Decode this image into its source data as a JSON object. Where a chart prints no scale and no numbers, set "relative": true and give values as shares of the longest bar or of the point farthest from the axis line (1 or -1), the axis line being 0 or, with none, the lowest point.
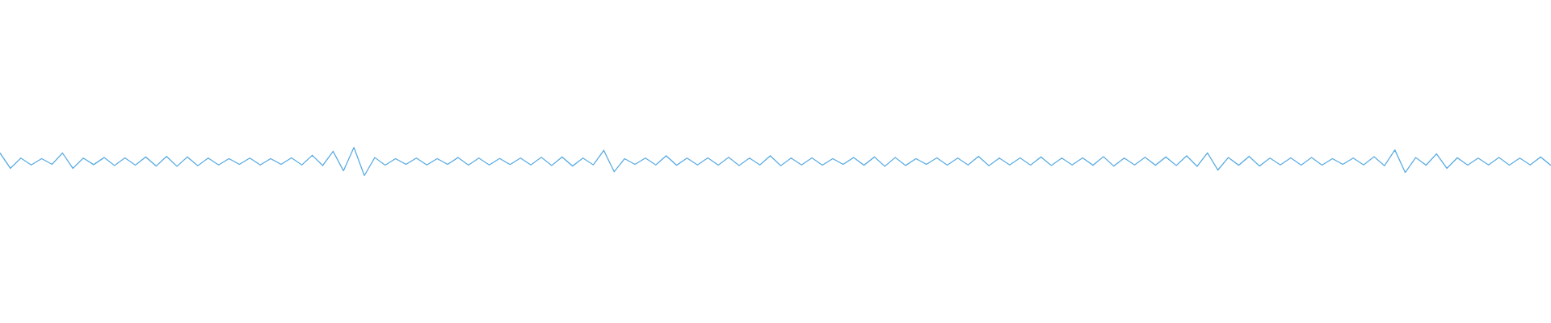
{
  "chart_data": {
    "type": "line",
    "relative": true,
    "categories": [
      null,
      null,
      null,
      null,
      null,
      null,
      null,
      null,
      null,
      null,
      null,
      null,
      null,
      null,
      null,
      null,
      null,
      null,
      null,
      null,
      null,
      null,
      null,
      null,
      null,
      null,
      null,
      null,
      null,
      null,
      null,
      null,
      null,
      null,
      null,
      null,
      null,
      null,
      null,
      null,
      null,
      null,
      null,
      null,
      null,
      null,
      null,
      null,
      null,
      null,
      null,
      null,
      null,
      null,
      null,
      null,
      null,
      null,
      null,
      null,
      null,
      null,
      null,
      null,
      null,
      null,
      null,
      null,
      null,
      null,
      null,
      null,
      null,
      null,
      null,
      null,
      null,
      null,
      null,
      null,
      null,
      null,
      null,
      null,
      null,
      null,
      null,
      null,
      null,
      null,
      null,
      null,
      null,
      null,
      null,
      null,
      null,
      null,
      null,
      null,
      null,
      null,
      null,
      null,
      null,
      null,
      null,
      null,
      null,
      null,
      null,
      null,
      null,
      null,
      null,
      null,
      null,
      null,
      null,
      null,
      null,
      null,
      null,
      null,
      null,
      null,
      null,
      null,
      null,
      null,
      null,
      null,
      null,
      null,
      null,
      null,
      null,
      null,
      null,
      null,
      null,
      null,
      null,
      null,
      null,
      null,
      null,
      null,
      null,
      null
    ],
    "series": [
      {
        "color": "#5dade2",
        "values": [
          0.8,
          0.26,
          0.62,
          0.38,
          0.6,
          0.4,
          0.8,
          0.26,
          0.62,
          0.39,
          0.64,
          0.36,
          0.63,
          0.37,
          0.66,
          0.34,
          0.68,
          0.33,
          0.66,
          0.35,
          0.62,
          0.38,
          0.6,
          0.4,
          0.62,
          0.38,
          0.6,
          0.4,
          0.63,
          0.38,
          0.72,
          0.36,
          0.86,
          0.17,
          1.0,
          0.0,
          0.64,
          0.37,
          0.6,
          0.4,
          0.62,
          0.38,
          0.6,
          0.4,
          0.64,
          0.37,
          0.62,
          0.38,
          0.61,
          0.39,
          0.62,
          0.38,
          0.65,
          0.36,
          0.66,
          0.34,
          0.62,
          0.38,
          0.89,
          0.14,
          0.6,
          0.4,
          0.62,
          0.38,
          0.7,
          0.37,
          0.62,
          0.38,
          0.63,
          0.37,
          0.65,
          0.36,
          0.62,
          0.38,
          0.7,
          0.35,
          0.62,
          0.38,
          0.63,
          0.37,
          0.6,
          0.4,
          0.64,
          0.37,
          0.66,
          0.33,
          0.64,
          0.36,
          0.6,
          0.4,
          0.63,
          0.37,
          0.62,
          0.38,
          0.68,
          0.35,
          0.62,
          0.38,
          0.63,
          0.37,
          0.66,
          0.36,
          0.62,
          0.38,
          0.63,
          0.37,
          0.67,
          0.34,
          0.62,
          0.38,
          0.65,
          0.37,
          0.66,
          0.36,
          0.7,
          0.33,
          0.8,
          0.2,
          0.64,
          0.37,
          0.68,
          0.34,
          0.62,
          0.38,
          0.63,
          0.37,
          0.64,
          0.37,
          0.6,
          0.4,
          0.62,
          0.38,
          0.67,
          0.35,
          0.91,
          0.11,
          0.64,
          0.37,
          0.77,
          0.26,
          0.63,
          0.37,
          0.62,
          0.38,
          0.64,
          0.37,
          0.62,
          0.38,
          0.66,
          0.36
        ]
      }
    ]
  }
}
